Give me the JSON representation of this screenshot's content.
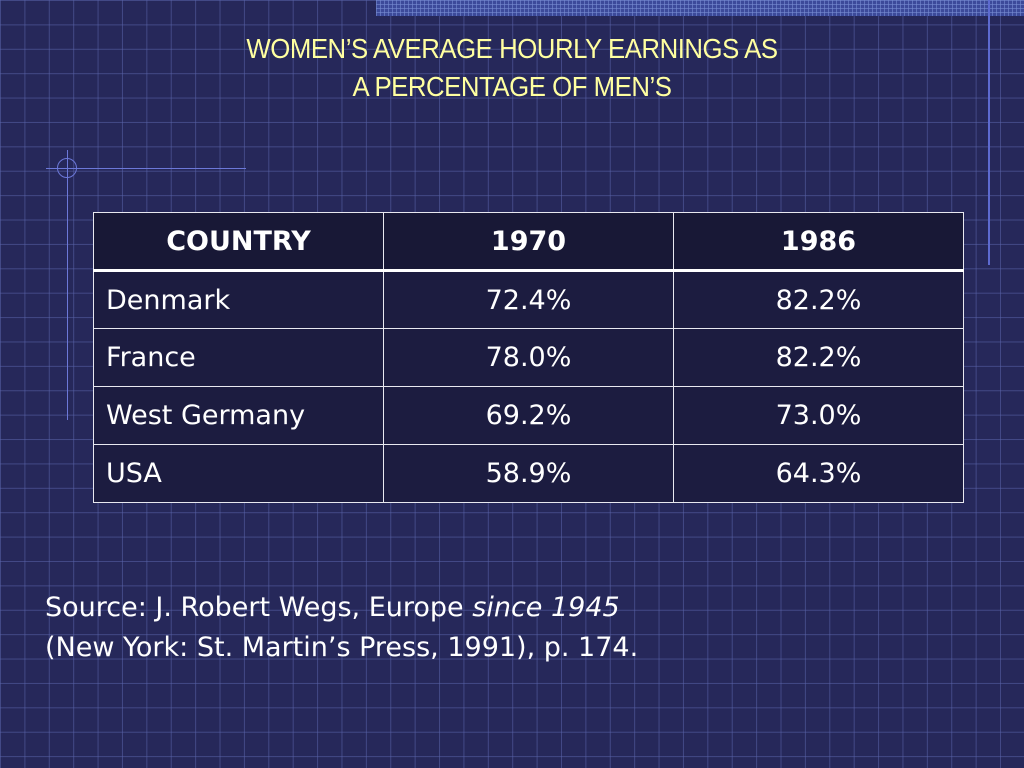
{
  "slide": {
    "title_line1": "WOMEN’S AVERAGE HOURLY EARNINGS AS",
    "title_line2": "A PERCENTAGE OF MEN’S"
  },
  "table": {
    "headers": [
      "COUNTRY",
      "1970",
      "1986"
    ],
    "rows": [
      [
        "Denmark",
        "72.4%",
        "82.2%"
      ],
      [
        "France",
        "78.0%",
        "82.2%"
      ],
      [
        "West Germany",
        "69.2%",
        "73.0%"
      ],
      [
        "USA",
        "58.9%",
        "64.3%"
      ]
    ]
  },
  "source": {
    "prefix": "Source: J. Robert Wegs, Europe ",
    "italic": "since 1945",
    "line2": "(New York: St. Martin’s Press, 1991), p. 174."
  },
  "colors": {
    "background": "#26285a",
    "title": "#ffffa0",
    "text": "#ffffff",
    "table_bg": "#1c1c40"
  }
}
